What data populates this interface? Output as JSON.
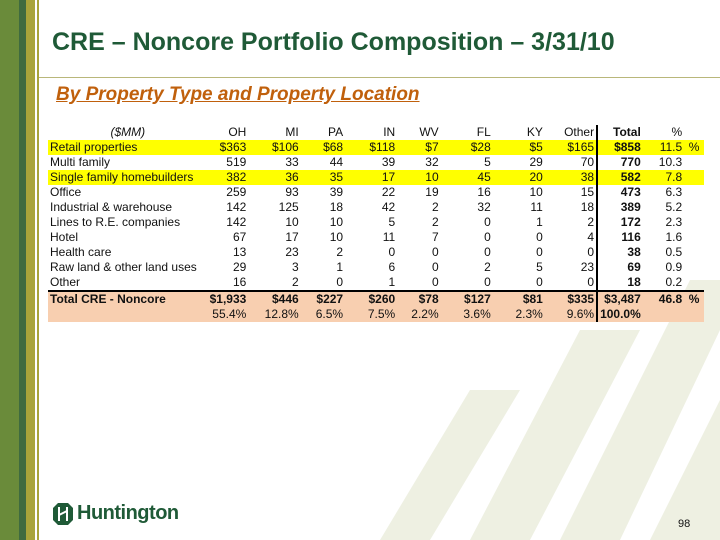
{
  "title": "CRE – Noncore Portfolio Composition – 3/31/10",
  "subtitle": "By Property Type and Property Location",
  "table": {
    "headers": [
      "($MM)",
      "OH",
      "MI",
      "PA",
      "IN",
      "WV",
      "FL",
      "KY",
      "Other",
      "Total",
      "%",
      ""
    ],
    "rows": [
      [
        "Retail properties",
        "$363",
        "$106",
        "$68",
        "$118",
        "$7",
        "$28",
        "$5",
        "$165",
        "$858",
        "11.5",
        "%"
      ],
      [
        "Multi family",
        "519",
        "33",
        "44",
        "39",
        "32",
        "5",
        "29",
        "70",
        "770",
        "10.3",
        ""
      ],
      [
        "Single family homebuilders",
        "382",
        "36",
        "35",
        "17",
        "10",
        "45",
        "20",
        "38",
        "582",
        "7.8",
        ""
      ],
      [
        "Office",
        "259",
        "93",
        "39",
        "22",
        "19",
        "16",
        "10",
        "15",
        "473",
        "6.3",
        ""
      ],
      [
        "Industrial & warehouse",
        "142",
        "125",
        "18",
        "42",
        "2",
        "32",
        "11",
        "18",
        "389",
        "5.2",
        ""
      ],
      [
        "Lines to R.E. companies",
        "142",
        "10",
        "10",
        "5",
        "2",
        "0",
        "1",
        "2",
        "172",
        "2.3",
        ""
      ],
      [
        "Hotel",
        "67",
        "17",
        "10",
        "11",
        "7",
        "0",
        "0",
        "4",
        "116",
        "1.6",
        ""
      ],
      [
        "Health care",
        "13",
        "23",
        "2",
        "0",
        "0",
        "0",
        "0",
        "0",
        "38",
        "0.5",
        ""
      ],
      [
        "Raw land & other land uses",
        "29",
        "3",
        "1",
        "6",
        "0",
        "2",
        "5",
        "23",
        "69",
        "0.9",
        ""
      ],
      [
        "Other",
        "16",
        "2",
        "0",
        "1",
        "0",
        "0",
        "0",
        "0",
        "18",
        "0.2",
        ""
      ]
    ],
    "total": [
      "Total CRE - Noncore",
      "$1,933",
      "$446",
      "$227",
      "$260",
      "$78",
      "$127",
      "$81",
      "$335",
      "$3,487",
      "46.8",
      "%"
    ],
    "share": [
      "",
      "55.4%",
      "12.8%",
      "6.5%",
      "7.5%",
      "2.2%",
      "3.6%",
      "2.3%",
      "9.6%",
      "100.0%",
      "",
      ""
    ]
  },
  "highlight_rows": [
    0,
    2
  ],
  "logo_text": "Huntington",
  "page_number": "98",
  "colors": {
    "title": "#1f5a37",
    "subtitle": "#c0600c",
    "highlight": "#ffff00",
    "total_bg": "#f8cfb0"
  }
}
